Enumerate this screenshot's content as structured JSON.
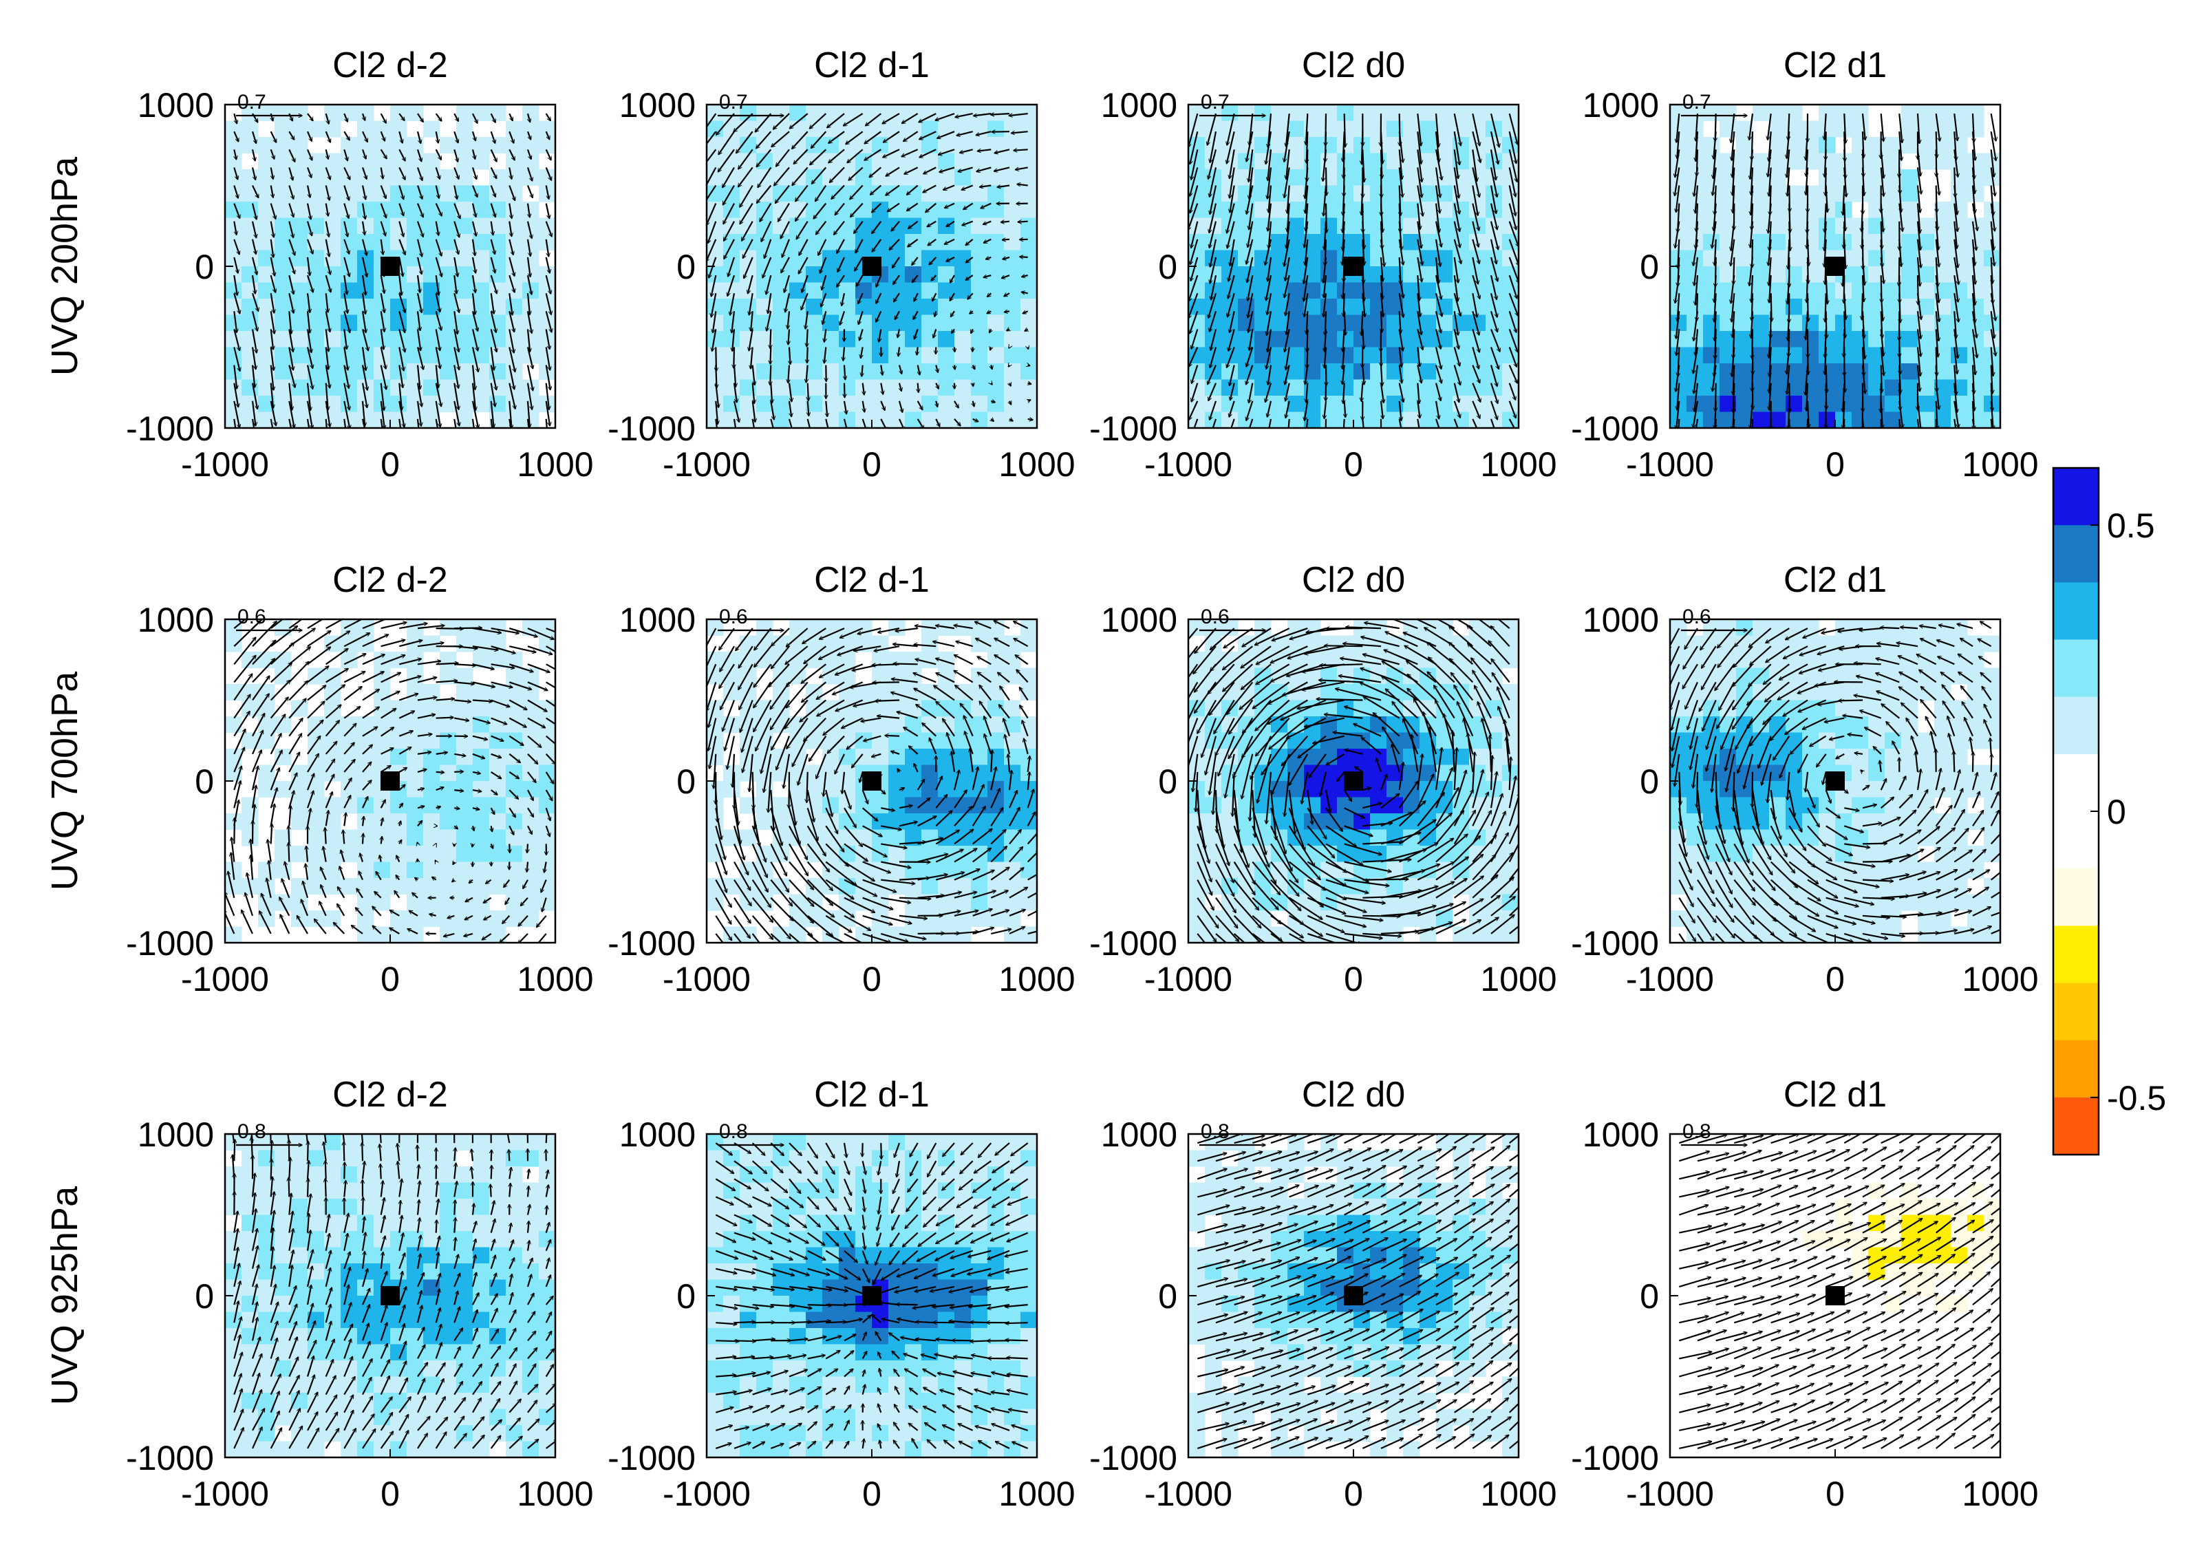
{
  "chart_data": {
    "type": "heatmap",
    "description_title": "Composite UVQ moisture flux (vectors) and anomaly (shading) around storm centre",
    "columns": [
      "Cl2  d-2",
      "Cl2  d-1",
      "Cl2  d0",
      "Cl2  d1"
    ],
    "rows": [
      "UVQ 200hPa",
      "UVQ 700hPa",
      "UVQ 925hPa"
    ],
    "xlim": [
      -1000,
      1000
    ],
    "ylim": [
      -1000,
      1000
    ],
    "x_ticks": [
      "-1000",
      "0",
      "1000"
    ],
    "y_ticks": [
      "1000",
      "0",
      "-1000"
    ],
    "reference_vectors": [
      "0.7",
      "0.6",
      "0.8"
    ],
    "colorbar": {
      "range": [
        -0.6,
        0.6
      ],
      "tick_labels": [
        "0.5",
        "0",
        "-0.5"
      ],
      "tick_values": [
        0.5,
        0.0,
        -0.5
      ],
      "levels": [
        {
          "from": 0.5,
          "to": 0.6,
          "color": "#1414e6"
        },
        {
          "from": 0.4,
          "to": 0.5,
          "color": "#1a7ac6"
        },
        {
          "from": 0.3,
          "to": 0.4,
          "color": "#1fb4ea"
        },
        {
          "from": 0.2,
          "to": 0.3,
          "color": "#86e8f9"
        },
        {
          "from": 0.1,
          "to": 0.2,
          "color": "#c7eef9"
        },
        {
          "from": 0.0,
          "to": 0.1,
          "color": "#ffffff"
        },
        {
          "from": -0.1,
          "to": 0.0,
          "color": "#ffffff"
        },
        {
          "from": -0.2,
          "to": -0.1,
          "color": "#fffbe4"
        },
        {
          "from": -0.3,
          "to": -0.2,
          "color": "#ffee00"
        },
        {
          "from": -0.4,
          "to": -0.3,
          "color": "#ffc800"
        },
        {
          "from": -0.5,
          "to": -0.4,
          "color": "#ffa000"
        },
        {
          "from": -0.6,
          "to": -0.5,
          "color": "#ff5a0a"
        }
      ]
    },
    "panels": [
      {
        "row": 0,
        "col": 0,
        "title": "Cl2  d-2",
        "ref": "0.7",
        "flow": "west",
        "shade_center_x": -100,
        "shade_center_y": -200,
        "peak": 0.28,
        "spread_x": 900,
        "spread_y": 600,
        "base": 0.12
      },
      {
        "row": 0,
        "col": 1,
        "title": "Cl2  d-1",
        "ref": "0.7",
        "flow": "cyclonic_weak",
        "shade_center_x": 100,
        "shade_center_y": -100,
        "peak": 0.36,
        "spread_x": 800,
        "spread_y": 500,
        "base": 0.16
      },
      {
        "row": 0,
        "col": 2,
        "title": "Cl2  d0",
        "ref": "0.7",
        "flow": "southward_diverging",
        "shade_center_x": -200,
        "shade_center_y": -300,
        "peak": 0.45,
        "spread_x": 900,
        "spread_y": 600,
        "base": 0.16
      },
      {
        "row": 0,
        "col": 3,
        "title": "Cl2  d1",
        "ref": "0.7",
        "flow": "southward",
        "shade_center_x": -300,
        "shade_center_y": -900,
        "peak": 0.48,
        "spread_x": 1200,
        "spread_y": 700,
        "base": 0.14
      },
      {
        "row": 1,
        "col": 0,
        "title": "Cl2  d-2",
        "ref": "0.6",
        "flow": "anticyclonic",
        "shade_center_x": 400,
        "shade_center_y": -100,
        "peak": 0.24,
        "spread_x": 700,
        "spread_y": 600,
        "base": 0.1
      },
      {
        "row": 1,
        "col": 1,
        "title": "Cl2  d-1",
        "ref": "0.6",
        "flow": "cyclonic",
        "shade_center_x": 500,
        "shade_center_y": -150,
        "peak": 0.42,
        "spread_x": 600,
        "spread_y": 450,
        "base": 0.12
      },
      {
        "row": 1,
        "col": 2,
        "title": "Cl2  d0",
        "ref": "0.6",
        "flow": "cyclonic_strong",
        "shade_center_x": 0,
        "shade_center_y": 0,
        "peak": 0.56,
        "spread_x": 600,
        "spread_y": 450,
        "base": 0.14
      },
      {
        "row": 1,
        "col": 3,
        "title": "Cl2  d1",
        "ref": "0.6",
        "flow": "cyclonic",
        "shade_center_x": -600,
        "shade_center_y": 50,
        "peak": 0.42,
        "spread_x": 600,
        "spread_y": 400,
        "base": 0.14
      },
      {
        "row": 2,
        "col": 0,
        "title": "Cl2  d-2",
        "ref": "0.8",
        "flow": "northward_mixed",
        "shade_center_x": 200,
        "shade_center_y": -50,
        "peak": 0.38,
        "spread_x": 800,
        "spread_y": 400,
        "base": 0.15
      },
      {
        "row": 2,
        "col": 1,
        "title": "Cl2  d-1",
        "ref": "0.8",
        "flow": "convergent",
        "shade_center_x": 100,
        "shade_center_y": 0,
        "peak": 0.52,
        "spread_x": 700,
        "spread_y": 350,
        "base": 0.18
      },
      {
        "row": 2,
        "col": 2,
        "title": "Cl2  d0",
        "ref": "0.8",
        "flow": "inflow_sw",
        "shade_center_x": 100,
        "shade_center_y": 100,
        "peak": 0.42,
        "spread_x": 700,
        "spread_y": 450,
        "base": 0.1
      },
      {
        "row": 2,
        "col": 3,
        "title": "Cl2  d1",
        "ref": "0.8",
        "flow": "inflow_sw",
        "shade_center_x": 500,
        "shade_center_y": 300,
        "peak": -0.28,
        "spread_x": 600,
        "spread_y": 350,
        "base": 0.02
      }
    ]
  }
}
